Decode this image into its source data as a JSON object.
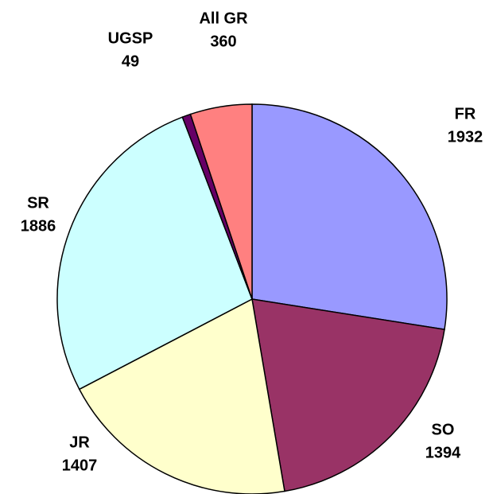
{
  "chart_data": {
    "type": "pie",
    "categories": [
      "FR",
      "SO",
      "JR",
      "SR",
      "UGSP",
      "All GR"
    ],
    "values": [
      1932,
      1394,
      1407,
      1886,
      49,
      360
    ],
    "colors": [
      "#9999ff",
      "#993366",
      "#ffffcc",
      "#ccffff",
      "#660066",
      "#ff8080"
    ]
  }
}
